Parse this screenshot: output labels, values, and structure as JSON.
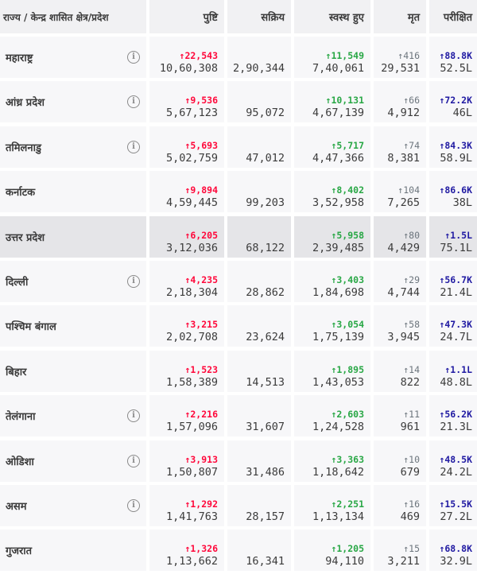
{
  "header": {
    "state": "राज्य / केन्द्र शासित क्षेत्र/प्रदेश",
    "confirmed": "पुष्टि",
    "active": "सक्रिय",
    "recovered": "स्वस्थ हुए",
    "deceased": "मृत",
    "tested": "परीक्षित"
  },
  "rows": [
    {
      "name": "महाराष्ट्र",
      "info": true,
      "c_delta": "↑22,543",
      "confirmed": "10,60,308",
      "active": "2,90,344",
      "r_delta": "↑11,549",
      "recovered": "7,40,061",
      "d_delta": "↑416",
      "deceased": "29,531",
      "t_delta": "↑88.8K",
      "tested": "52.5L"
    },
    {
      "name": "आंध्र प्रदेश",
      "info": true,
      "c_delta": "↑9,536",
      "confirmed": "5,67,123",
      "active": "95,072",
      "r_delta": "↑10,131",
      "recovered": "4,67,139",
      "d_delta": "↑66",
      "deceased": "4,912",
      "t_delta": "↑72.2K",
      "tested": "46L"
    },
    {
      "name": "तमिलनाडु",
      "info": true,
      "c_delta": "↑5,693",
      "confirmed": "5,02,759",
      "active": "47,012",
      "r_delta": "↑5,717",
      "recovered": "4,47,366",
      "d_delta": "↑74",
      "deceased": "8,381",
      "t_delta": "↑84.3K",
      "tested": "58.9L"
    },
    {
      "name": "कर्नाटक",
      "info": false,
      "c_delta": "↑9,894",
      "confirmed": "4,59,445",
      "active": "99,203",
      "r_delta": "↑8,402",
      "recovered": "3,52,958",
      "d_delta": "↑104",
      "deceased": "7,265",
      "t_delta": "↑86.6K",
      "tested": "38L"
    },
    {
      "name": "उत्तर प्रदेश",
      "info": false,
      "highlight": true,
      "c_delta": "↑6,205",
      "confirmed": "3,12,036",
      "active": "68,122",
      "r_delta": "↑5,958",
      "recovered": "2,39,485",
      "d_delta": "↑80",
      "deceased": "4,429",
      "t_delta": "↑1.5L",
      "tested": "75.1L"
    },
    {
      "name": "दिल्ली",
      "info": true,
      "c_delta": "↑4,235",
      "confirmed": "2,18,304",
      "active": "28,862",
      "r_delta": "↑3,403",
      "recovered": "1,84,698",
      "d_delta": "↑29",
      "deceased": "4,744",
      "t_delta": "↑56.7K",
      "tested": "21.4L"
    },
    {
      "name": "पश्चिम बंगाल",
      "info": false,
      "c_delta": "↑3,215",
      "confirmed": "2,02,708",
      "active": "23,624",
      "r_delta": "↑3,054",
      "recovered": "1,75,139",
      "d_delta": "↑58",
      "deceased": "3,945",
      "t_delta": "↑47.3K",
      "tested": "24.7L"
    },
    {
      "name": "बिहार",
      "info": false,
      "c_delta": "↑1,523",
      "confirmed": "1,58,389",
      "active": "14,513",
      "r_delta": "↑1,895",
      "recovered": "1,43,053",
      "d_delta": "↑14",
      "deceased": "822",
      "t_delta": "↑1.1L",
      "tested": "48.8L"
    },
    {
      "name": "तेलंगाना",
      "info": true,
      "c_delta": "↑2,216",
      "confirmed": "1,57,096",
      "active": "31,607",
      "r_delta": "↑2,603",
      "recovered": "1,24,528",
      "d_delta": "↑11",
      "deceased": "961",
      "t_delta": "↑56.2K",
      "tested": "21.3L"
    },
    {
      "name": "ओडिशा",
      "info": true,
      "c_delta": "↑3,913",
      "confirmed": "1,50,807",
      "active": "31,486",
      "r_delta": "↑3,363",
      "recovered": "1,18,642",
      "d_delta": "↑10",
      "deceased": "679",
      "t_delta": "↑48.5K",
      "tested": "24.2L"
    },
    {
      "name": "असम",
      "info": true,
      "c_delta": "↑1,292",
      "confirmed": "1,41,763",
      "active": "28,157",
      "r_delta": "↑2,251",
      "recovered": "1,13,134",
      "d_delta": "↑16",
      "deceased": "469",
      "t_delta": "↑15.5K",
      "tested": "27.2L"
    },
    {
      "name": "गुजरात",
      "info": false,
      "c_delta": "↑1,326",
      "confirmed": "1,13,662",
      "active": "16,341",
      "r_delta": "↑1,205",
      "recovered": "94,110",
      "d_delta": "↑15",
      "deceased": "3,211",
      "t_delta": "↑68.8K",
      "tested": "32.9L"
    }
  ],
  "icons": {
    "info": "info-icon"
  },
  "colors": {
    "confirmed": "#ff073a",
    "recovered": "#28a745",
    "deceased": "#6c757d",
    "tested": "#201aa2"
  }
}
